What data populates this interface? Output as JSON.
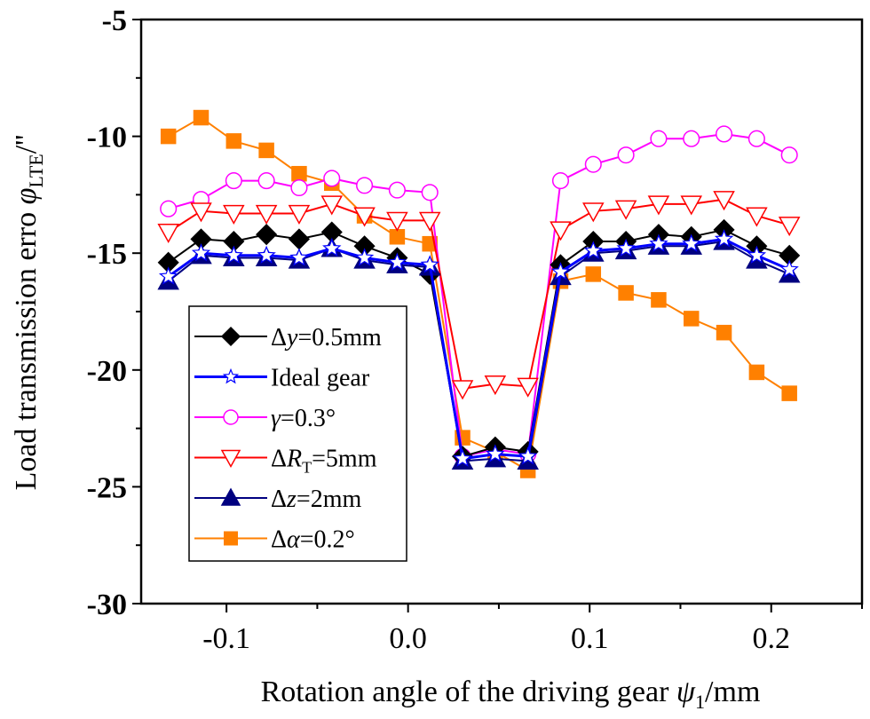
{
  "chart_data": {
    "type": "line",
    "title": "",
    "xlabel": "Rotation angle of the driving gear ψ1/mm",
    "xlabel_parts": {
      "main": "Rotation angle of the driving gear ",
      "symbol": "ψ",
      "subscript": "1",
      "unit": "/mm"
    },
    "ylabel": "Load transmission erro φLTE/''",
    "ylabel_parts": {
      "main": "Load transmission erro ",
      "symbol": "φ",
      "subscript": "LTE",
      "unit": "/''"
    },
    "xlim": [
      -0.147,
      0.25
    ],
    "ylim": [
      -30,
      -5
    ],
    "xticks": [
      -0.1,
      0.0,
      0.1,
      0.2
    ],
    "xtick_labels": [
      "-0.1",
      "0.0",
      "0.1",
      "0.2"
    ],
    "xminor": [
      -0.15,
      -0.05,
      0.05,
      0.15,
      0.25
    ],
    "yticks": [
      -5,
      -10,
      -15,
      -20,
      -25,
      -30
    ],
    "ytick_labels": [
      "-5",
      "-10",
      "-15",
      "-20",
      "-25",
      "-30"
    ],
    "yminor": [
      -7.5,
      -12.5,
      -17.5,
      -22.5,
      -27.5
    ],
    "grid": false,
    "legend_position": "lower-left",
    "x": [
      -0.132,
      -0.114,
      -0.096,
      -0.078,
      -0.06,
      -0.042,
      -0.024,
      -0.006,
      0.012,
      0.03,
      0.048,
      0.066,
      0.084,
      0.102,
      0.12,
      0.138,
      0.156,
      0.174,
      0.192,
      0.21
    ],
    "series": [
      {
        "name": "Δy=0.5mm",
        "label_parts": {
          "pre": "Δ",
          "italic": "y",
          "sub": "",
          "post": "=0.5mm"
        },
        "color": "#000000",
        "marker": "diamond",
        "filled": true,
        "values": [
          -15.4,
          -14.4,
          -14.5,
          -14.2,
          -14.4,
          -14.1,
          -14.7,
          -15.2,
          -15.9,
          -23.7,
          -23.3,
          -23.5,
          -15.5,
          -14.5,
          -14.5,
          -14.2,
          -14.3,
          -14.0,
          -14.7,
          -15.1
        ]
      },
      {
        "name": "Ideal gear",
        "label_parts": {
          "pre": "Ideal gear",
          "italic": "",
          "sub": "",
          "post": ""
        },
        "color": "#0000FF",
        "marker": "star",
        "filled": false,
        "values": [
          -16.0,
          -15.0,
          -15.1,
          -15.1,
          -15.2,
          -14.8,
          -15.2,
          -15.4,
          -15.5,
          -23.8,
          -23.6,
          -23.7,
          -15.8,
          -14.9,
          -14.8,
          -14.6,
          -14.6,
          -14.4,
          -15.1,
          -15.7
        ]
      },
      {
        "name": "γ=0.3°",
        "label_parts": {
          "pre": "",
          "italic": "γ",
          "sub": "",
          "post": "=0.3°"
        },
        "color": "#FF00FF",
        "marker": "circle",
        "filled": false,
        "values": [
          -13.1,
          -12.7,
          -11.9,
          -11.9,
          -12.2,
          -11.8,
          -12.1,
          -12.3,
          -12.4,
          -23.7,
          -23.4,
          -23.6,
          -11.9,
          -11.2,
          -10.8,
          -10.1,
          -10.1,
          -9.9,
          -10.1,
          -10.8
        ]
      },
      {
        "name": "ΔRT=5mm",
        "label_parts": {
          "pre": "Δ",
          "italic": "R",
          "sub": "T",
          "post": "=5mm"
        },
        "color": "#FF0000",
        "marker": "triangle-down",
        "filled": false,
        "values": [
          -14.1,
          -13.2,
          -13.3,
          -13.3,
          -13.3,
          -12.9,
          -13.4,
          -13.6,
          -13.6,
          -20.8,
          -20.6,
          -20.7,
          -14.0,
          -13.2,
          -13.1,
          -12.9,
          -12.9,
          -12.7,
          -13.4,
          -13.8
        ]
      },
      {
        "name": "Δz=2mm",
        "label_parts": {
          "pre": "Δ",
          "italic": "z",
          "sub": "",
          "post": "=2mm"
        },
        "color": "#000080",
        "marker": "triangle-up",
        "filled": true,
        "values": [
          -16.2,
          -15.1,
          -15.2,
          -15.2,
          -15.3,
          -14.8,
          -15.3,
          -15.5,
          -15.6,
          -23.9,
          -23.8,
          -23.9,
          -16.0,
          -15.0,
          -14.9,
          -14.7,
          -14.7,
          -14.5,
          -15.3,
          -15.9
        ]
      },
      {
        "name": "Δα=0.2°",
        "label_parts": {
          "pre": "Δ",
          "italic": "α",
          "sub": "",
          "post": "=0.2°"
        },
        "color": "#FF8000",
        "marker": "square",
        "filled": true,
        "values": [
          -10.0,
          -9.2,
          -10.2,
          -10.6,
          -11.6,
          -12.0,
          -13.4,
          -14.3,
          -14.6,
          -22.9,
          -23.5,
          -24.3,
          -16.2,
          -15.9,
          -16.7,
          -17.0,
          -17.8,
          -18.4,
          -20.1,
          -21.0
        ]
      }
    ]
  }
}
